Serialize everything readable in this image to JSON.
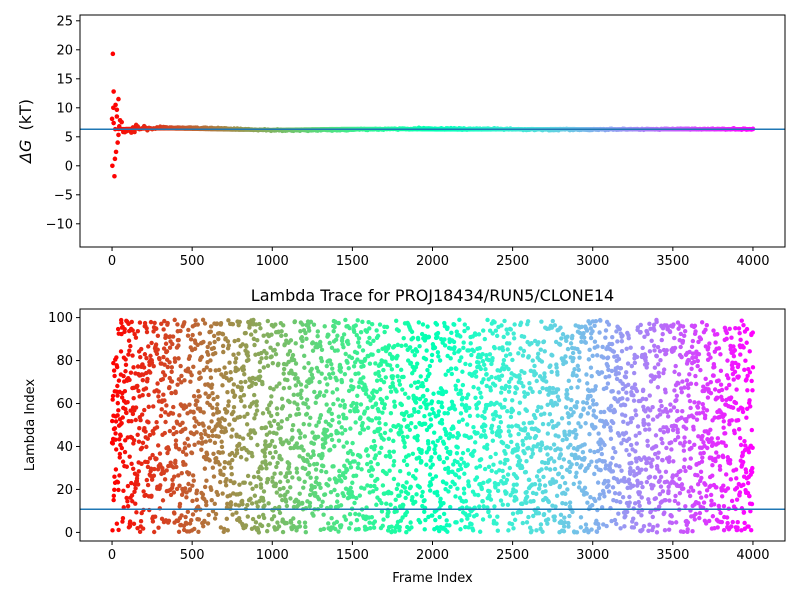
{
  "chart_data": [
    {
      "type": "scatter",
      "title": "",
      "xlabel": "",
      "ylabel_symbol": "ΔG",
      "ylabel_unit": "(kT)",
      "xlim": [
        -200,
        4200
      ],
      "ylim": [
        -14,
        26
      ],
      "xticks": [
        0,
        500,
        1000,
        1500,
        2000,
        2500,
        3000,
        3500,
        4000
      ],
      "yticks": [
        -10,
        -5,
        0,
        5,
        10,
        15,
        20,
        25
      ],
      "hline": {
        "y": 6.3,
        "color": "#1f77b4"
      },
      "colormap": "rainbow_r",
      "x_range": [
        0,
        4000
      ],
      "n_points": 400,
      "final_estimate": 6.3,
      "initial_spread": 7,
      "early_points": [
        {
          "x": 5,
          "y": 19.3
        },
        {
          "x": 2,
          "y": 0.0
        },
        {
          "x": 8,
          "y": 10.0
        },
        {
          "x": 10,
          "y": 12.8
        },
        {
          "x": 15,
          "y": -1.8
        },
        {
          "x": 18,
          "y": 1.2
        },
        {
          "x": 22,
          "y": 10.5
        },
        {
          "x": 25,
          "y": 2.4
        },
        {
          "x": 30,
          "y": 8.5
        },
        {
          "x": 35,
          "y": 4.0
        },
        {
          "x": 40,
          "y": 11.5
        },
        {
          "x": 45,
          "y": 6.8
        }
      ],
      "grid": false,
      "legend": "none"
    },
    {
      "type": "scatter",
      "title": "Lambda Trace for PROJ18434/RUN5/CLONE14",
      "xlabel": "Frame Index",
      "ylabel": "Lambda Index",
      "xlim": [
        -200,
        4200
      ],
      "ylim": [
        -4,
        104
      ],
      "xticks": [
        0,
        500,
        1000,
        1500,
        2000,
        2500,
        3000,
        3500,
        4000
      ],
      "yticks": [
        0,
        20,
        40,
        60,
        80,
        100
      ],
      "hline": {
        "y": 10.8,
        "color": "#1f77b4"
      },
      "colormap": "rainbow_r",
      "x_range": [
        0,
        4000
      ],
      "y_range": [
        0,
        99
      ],
      "n_points": 4000,
      "grid": false,
      "legend": "none"
    }
  ]
}
